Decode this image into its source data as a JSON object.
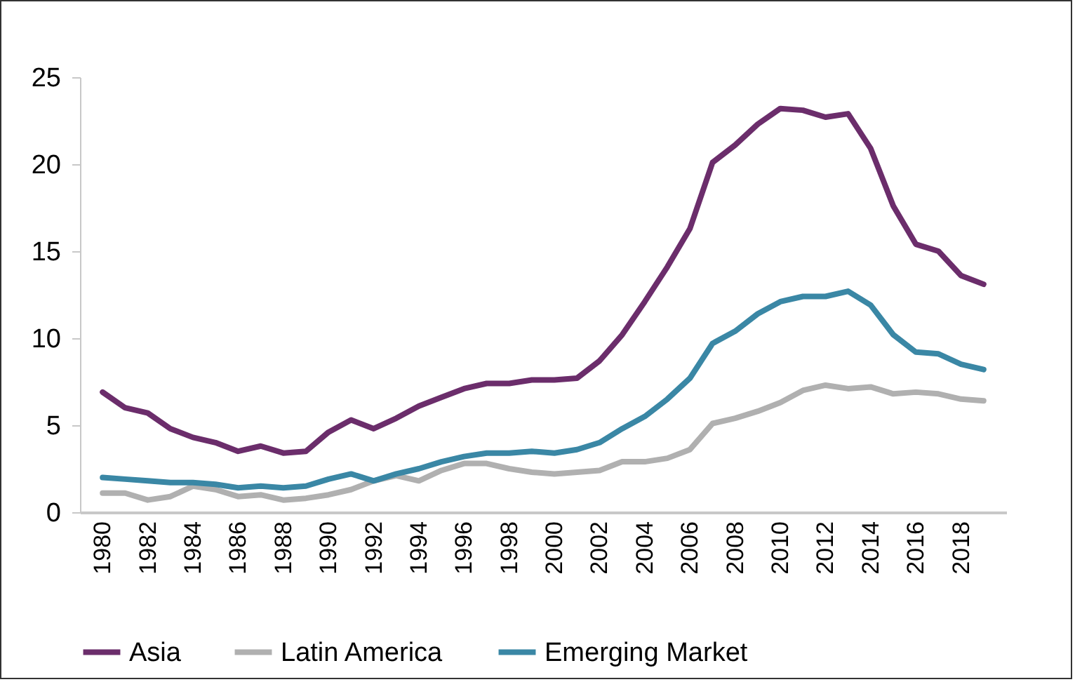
{
  "chart_data": {
    "type": "line",
    "x": [
      1980,
      1981,
      1982,
      1983,
      1984,
      1985,
      1986,
      1987,
      1988,
      1989,
      1990,
      1991,
      1992,
      1993,
      1994,
      1995,
      1996,
      1997,
      1998,
      1999,
      2000,
      2001,
      2002,
      2003,
      2004,
      2005,
      2006,
      2007,
      2008,
      2009,
      2010,
      2011,
      2012,
      2013,
      2014,
      2015,
      2016,
      2017,
      2018,
      2019
    ],
    "series": [
      {
        "name": "Asia",
        "color": "#6b2d6b",
        "values": [
          6.9,
          6.0,
          5.7,
          4.8,
          4.3,
          4.0,
          3.5,
          3.8,
          3.4,
          3.5,
          4.6,
          5.3,
          4.8,
          5.4,
          6.1,
          6.6,
          7.1,
          7.4,
          7.4,
          7.6,
          7.6,
          7.7,
          8.7,
          10.2,
          12.1,
          14.1,
          16.3,
          20.1,
          21.1,
          22.3,
          23.2,
          23.1,
          22.7,
          22.9,
          20.9,
          17.6,
          15.4,
          15.0,
          13.6,
          13.1
        ]
      },
      {
        "name": "Latin America",
        "color": "#b0b0b0",
        "values": [
          1.1,
          1.1,
          0.7,
          0.9,
          1.5,
          1.3,
          0.9,
          1.0,
          0.7,
          0.8,
          1.0,
          1.3,
          1.8,
          2.1,
          1.8,
          2.4,
          2.8,
          2.8,
          2.5,
          2.3,
          2.2,
          2.3,
          2.4,
          2.9,
          2.9,
          3.1,
          3.6,
          5.1,
          5.4,
          5.8,
          6.3,
          7.0,
          7.3,
          7.1,
          7.2,
          6.8,
          6.9,
          6.8,
          6.5,
          6.4
        ]
      },
      {
        "name": "Emerging Market",
        "color": "#3a87a5",
        "values": [
          2.0,
          1.9,
          1.8,
          1.7,
          1.7,
          1.6,
          1.4,
          1.5,
          1.4,
          1.5,
          1.9,
          2.2,
          1.8,
          2.2,
          2.5,
          2.9,
          3.2,
          3.4,
          3.4,
          3.5,
          3.4,
          3.6,
          4.0,
          4.8,
          5.5,
          6.5,
          7.7,
          9.7,
          10.4,
          11.4,
          12.1,
          12.4,
          12.4,
          12.7,
          11.9,
          10.2,
          9.2,
          9.1,
          8.5,
          8.2
        ]
      }
    ],
    "xlim": [
      1979,
      2020
    ],
    "xticks": [
      1980,
      1982,
      1984,
      1986,
      1988,
      1990,
      1992,
      1994,
      1996,
      1998,
      2000,
      2002,
      2004,
      2006,
      2008,
      2010,
      2012,
      2014,
      2016,
      2018
    ],
    "ylim": [
      0,
      25
    ],
    "yticks": [
      0,
      5,
      10,
      15,
      20,
      25
    ],
    "legend": "bottom",
    "marker": "none",
    "line_style": "solid"
  }
}
